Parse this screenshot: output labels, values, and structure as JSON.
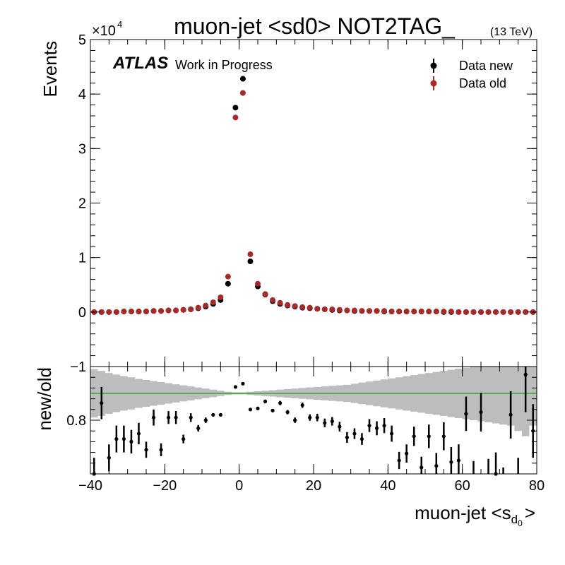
{
  "chart_data": {
    "type": "scatter",
    "title": "muon-jet <sd0> NOT2TAG_",
    "energy_label": "(13 TeV)",
    "experiment": "ATLAS",
    "status_label": "Work in Progress",
    "x_axis": {
      "label_main": "muon-jet <s",
      "label_sub": "d",
      "label_subsub": "0",
      "label_close": ">",
      "range": [
        -40,
        80
      ],
      "ticks": [
        -40,
        -20,
        0,
        20,
        40,
        60,
        80
      ],
      "tick_labels": [
        "−40",
        "−20",
        "0",
        "20",
        "40",
        "60",
        "80"
      ]
    },
    "top_panel": {
      "ylabel": "Events",
      "multiplier_base": "×10",
      "multiplier_exp": "4",
      "ylim": [
        -1,
        5
      ],
      "yticks": [
        -1,
        0,
        1,
        2,
        3,
        4,
        5
      ],
      "ytick_labels": [
        "−1",
        "0",
        "1",
        "2",
        "3",
        "4",
        "5"
      ],
      "legend_position": "top-right",
      "series": [
        {
          "name": "Data new",
          "color": "#000000",
          "x": [
            -39,
            -37,
            -35,
            -33,
            -31,
            -29,
            -27,
            -25,
            -23,
            -21,
            -19,
            -17,
            -15,
            -13,
            -11,
            -9,
            -7,
            -5,
            -3,
            -1,
            1,
            3,
            5,
            7,
            9,
            11,
            13,
            15,
            17,
            19,
            21,
            23,
            25,
            27,
            29,
            31,
            33,
            35,
            37,
            39,
            41,
            43,
            45,
            47,
            49,
            51,
            53,
            55,
            57,
            59,
            61,
            63,
            65,
            67,
            69,
            71,
            73,
            75,
            77,
            79
          ],
          "y": [
            0.0,
            0.0,
            0.0,
            0.0,
            0.01,
            0.01,
            0.01,
            0.01,
            0.02,
            0.02,
            0.03,
            0.03,
            0.04,
            0.05,
            0.07,
            0.1,
            0.15,
            0.22,
            0.52,
            3.75,
            4.28,
            0.93,
            0.47,
            0.32,
            0.2,
            0.15,
            0.12,
            0.1,
            0.08,
            0.07,
            0.06,
            0.05,
            0.04,
            0.03,
            0.03,
            0.02,
            0.02,
            0.02,
            0.02,
            0.01,
            0.01,
            0.01,
            0.01,
            0.01,
            0.01,
            0.01,
            0.01,
            0.0,
            0.0,
            0.0,
            0.0,
            0.0,
            0.0,
            0.0,
            0.0,
            0.0,
            0.0,
            0.0,
            0.0,
            0.0
          ]
        },
        {
          "name": "Data old",
          "color": "#a52a2a",
          "x": [
            -39,
            -37,
            -35,
            -33,
            -31,
            -29,
            -27,
            -25,
            -23,
            -21,
            -19,
            -17,
            -15,
            -13,
            -11,
            -9,
            -7,
            -5,
            -3,
            -1,
            1,
            3,
            5,
            7,
            9,
            11,
            13,
            15,
            17,
            19,
            21,
            23,
            25,
            27,
            29,
            31,
            33,
            35,
            37,
            39,
            41,
            43,
            45,
            47,
            49,
            51,
            53,
            55,
            57,
            59,
            61,
            63,
            65,
            67,
            69,
            71,
            73,
            75,
            77,
            79
          ],
          "y": [
            0.0,
            0.0,
            0.0,
            0.0,
            0.01,
            0.01,
            0.01,
            0.01,
            0.02,
            0.02,
            0.03,
            0.03,
            0.04,
            0.05,
            0.08,
            0.12,
            0.18,
            0.27,
            0.65,
            3.57,
            4.02,
            1.06,
            0.52,
            0.33,
            0.22,
            0.17,
            0.13,
            0.11,
            0.09,
            0.08,
            0.06,
            0.05,
            0.05,
            0.04,
            0.03,
            0.03,
            0.02,
            0.02,
            0.02,
            0.02,
            0.01,
            0.01,
            0.01,
            0.01,
            0.01,
            0.01,
            0.01,
            0.01,
            0.01,
            0.0,
            0.0,
            0.0,
            0.0,
            0.0,
            0.0,
            0.0,
            0.0,
            0.0,
            0.0,
            0.0
          ]
        }
      ]
    },
    "ratio_panel": {
      "ylabel": "new/old",
      "ylim": [
        0.7,
        0.9
      ],
      "yticks": [
        0.8
      ],
      "ytick_labels": [
        "0.8"
      ],
      "reference_line": 0.85,
      "reference_color": "#33aa33",
      "band_color": "#bdbdbd",
      "band": {
        "x_edges": [
          -40,
          -38,
          -36,
          -34,
          -32,
          -30,
          -28,
          -26,
          -24,
          -22,
          -20,
          -18,
          -16,
          -14,
          -12,
          -10,
          -8,
          -6,
          -4,
          -2,
          0,
          2,
          4,
          6,
          8,
          10,
          12,
          14,
          16,
          18,
          20,
          22,
          24,
          26,
          28,
          30,
          32,
          34,
          36,
          38,
          40,
          42,
          44,
          46,
          48,
          50,
          52,
          54,
          56,
          58,
          60,
          62,
          64,
          66,
          68,
          70,
          72,
          74,
          76,
          78,
          80
        ],
        "halfwidth": [
          0.045,
          0.042,
          0.038,
          0.035,
          0.032,
          0.03,
          0.027,
          0.025,
          0.023,
          0.021,
          0.019,
          0.017,
          0.015,
          0.013,
          0.011,
          0.009,
          0.007,
          0.005,
          0.003,
          0.002,
          0.002,
          0.003,
          0.004,
          0.005,
          0.006,
          0.007,
          0.008,
          0.009,
          0.01,
          0.011,
          0.012,
          0.013,
          0.014,
          0.015,
          0.016,
          0.018,
          0.02,
          0.022,
          0.024,
          0.026,
          0.028,
          0.03,
          0.032,
          0.034,
          0.036,
          0.038,
          0.04,
          0.042,
          0.044,
          0.046,
          0.048,
          0.05,
          0.052,
          0.054,
          0.056,
          0.058,
          0.06,
          0.07,
          0.08,
          0.06
        ]
      },
      "points": {
        "x": [
          -39,
          -37,
          -35,
          -33,
          -31,
          -29,
          -27,
          -25,
          -23,
          -21,
          -19,
          -17,
          -15,
          -13,
          -11,
          -9,
          -7,
          -5,
          -1,
          1,
          3,
          5,
          7,
          9,
          11,
          13,
          15,
          17,
          19,
          21,
          23,
          25,
          27,
          29,
          31,
          33,
          35,
          37,
          39,
          41,
          43,
          45,
          47,
          49,
          51,
          53,
          55,
          57,
          59,
          61,
          63,
          65,
          67,
          69,
          71,
          73,
          75,
          77,
          79
        ],
        "y": [
          0.7,
          0.832,
          0.73,
          0.765,
          0.765,
          0.76,
          0.775,
          0.745,
          0.805,
          0.745,
          0.805,
          0.805,
          0.765,
          0.805,
          0.785,
          0.8,
          0.81,
          0.81,
          0.862,
          0.868,
          0.82,
          0.822,
          0.835,
          0.818,
          0.832,
          0.815,
          0.8,
          0.828,
          0.805,
          0.805,
          0.795,
          0.798,
          0.788,
          0.768,
          0.775,
          0.765,
          0.79,
          0.785,
          0.79,
          0.775,
          0.725,
          0.738,
          0.77,
          0.712,
          0.77,
          0.715,
          0.77,
          0.722,
          0.725,
          0.812,
          0.69,
          0.815,
          0.69,
          0.7,
          0.67,
          0.81,
          0.68,
          0.885,
          0.78
        ],
        "err": [
          0.03,
          0.03,
          0.025,
          0.025,
          0.025,
          0.022,
          0.02,
          0.015,
          0.015,
          0.012,
          0.012,
          0.012,
          0.008,
          0.008,
          0.006,
          0.005,
          0.003,
          0.003,
          0.002,
          0.002,
          0.002,
          0.002,
          0.003,
          0.003,
          0.004,
          0.004,
          0.005,
          0.005,
          0.006,
          0.007,
          0.008,
          0.008,
          0.009,
          0.01,
          0.01,
          0.011,
          0.012,
          0.013,
          0.014,
          0.015,
          0.016,
          0.017,
          0.018,
          0.02,
          0.022,
          0.024,
          0.026,
          0.028,
          0.03,
          0.032,
          0.034,
          0.036,
          0.038,
          0.04,
          0.042,
          0.044,
          0.05,
          0.07,
          0.05
        ]
      }
    }
  }
}
